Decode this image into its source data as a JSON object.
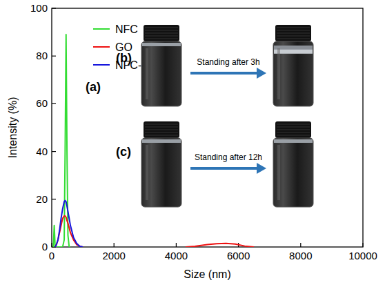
{
  "chart_data": {
    "type": "line",
    "x_label": "Size (nm)",
    "y_label": "Intensity (%)",
    "x": [
      0,
      50,
      80,
      110,
      150,
      200,
      250,
      300,
      350,
      400,
      430,
      460,
      490,
      520,
      560,
      600,
      700,
      800,
      900,
      1000,
      2000,
      4000,
      4300,
      4600,
      5000,
      5300,
      5600,
      5900,
      6200,
      6500,
      8000,
      10000
    ],
    "series": [
      {
        "name": "NFC",
        "color": "#33dd33",
        "values": [
          null,
          0,
          9,
          0,
          0,
          0,
          0,
          0,
          0,
          3,
          40,
          89,
          40,
          5,
          0,
          0,
          null,
          null,
          null,
          null,
          null,
          null,
          null,
          null,
          null,
          null,
          null,
          null,
          null,
          null,
          null,
          null
        ]
      },
      {
        "name": "GO",
        "color": "#ee1111",
        "values": [
          null,
          null,
          null,
          0,
          1,
          3,
          6,
          9,
          12,
          13,
          13,
          12.5,
          11,
          10,
          8,
          6,
          3,
          1,
          0.3,
          0,
          null,
          null,
          0,
          0.3,
          1,
          1.4,
          1.5,
          1.2,
          0.4,
          0,
          null,
          null
        ]
      },
      {
        "name": "NFC-GO",
        "color": "#1515dd",
        "values": [
          null,
          null,
          null,
          0,
          1,
          3,
          7,
          12,
          16,
          19,
          19.5,
          19,
          17,
          15,
          12,
          9,
          4,
          1.5,
          0.3,
          0,
          null,
          null,
          null,
          null,
          null,
          null,
          null,
          null,
          null,
          null,
          null,
          null
        ]
      }
    ],
    "xlim": [
      0,
      10000
    ],
    "xticks": [
      0,
      2000,
      4000,
      6000,
      8000,
      10000
    ],
    "ylim": [
      0,
      100
    ],
    "yticks": [
      0,
      20,
      40,
      60,
      80,
      100
    ],
    "legend": "upper left",
    "annotations": [
      "(a)",
      "(b)",
      "Standing after 3h",
      "(c)",
      "Standing after 12h"
    ]
  }
}
